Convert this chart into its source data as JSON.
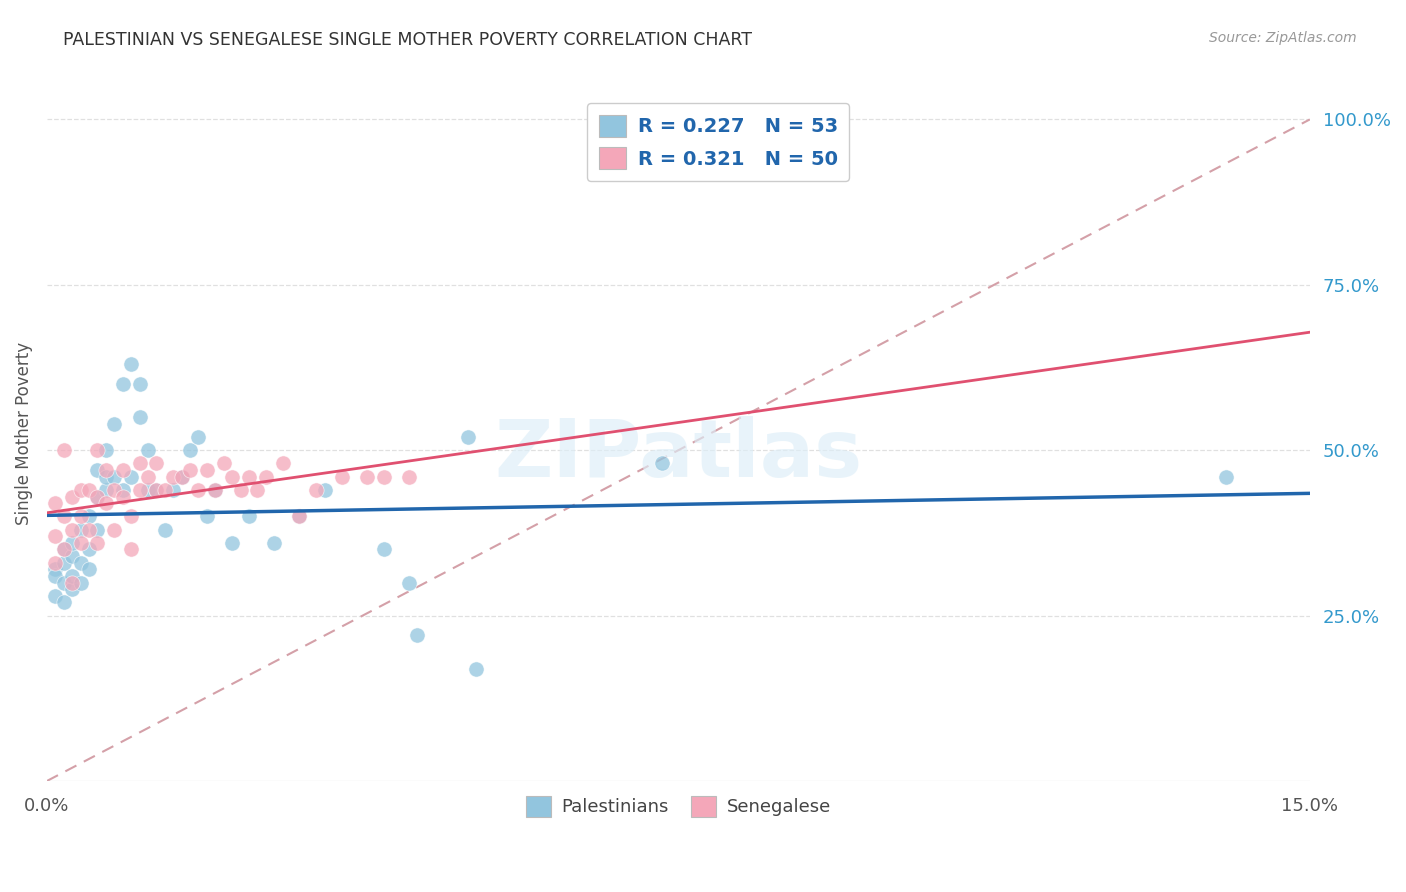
{
  "title": "PALESTINIAN VS SENEGALESE SINGLE MOTHER POVERTY CORRELATION CHART",
  "source": "Source: ZipAtlas.com",
  "ylabel_label": "Single Mother Poverty",
  "xlim": [
    0.0,
    0.15
  ],
  "ylim": [
    0.0,
    1.05
  ],
  "ytick_vals_right": [
    0.25,
    0.5,
    0.75,
    1.0
  ],
  "ytick_labels_right": [
    "25.0%",
    "50.0%",
    "75.0%",
    "100.0%"
  ],
  "palestinians_R": 0.227,
  "palestinians_N": 53,
  "senegalese_R": 0.321,
  "senegalese_N": 50,
  "blue_color": "#92c5de",
  "pink_color": "#f4a7b9",
  "blue_line_color": "#2166ac",
  "pink_line_color": "#e05070",
  "diagonal_color": "#d4a0a8",
  "legend_text_color": "#2166ac",
  "right_axis_color": "#3399cc",
  "background_color": "#ffffff",
  "grid_color": "#e0e0e0",
  "palestinians_x": [
    0.001,
    0.001,
    0.001,
    0.002,
    0.002,
    0.002,
    0.002,
    0.003,
    0.003,
    0.003,
    0.003,
    0.004,
    0.004,
    0.004,
    0.005,
    0.005,
    0.005,
    0.006,
    0.006,
    0.006,
    0.007,
    0.007,
    0.007,
    0.008,
    0.008,
    0.009,
    0.009,
    0.01,
    0.01,
    0.011,
    0.011,
    0.012,
    0.012,
    0.013,
    0.014,
    0.015,
    0.016,
    0.017,
    0.018,
    0.019,
    0.02,
    0.022,
    0.024,
    0.027,
    0.03,
    0.033,
    0.04,
    0.043,
    0.044,
    0.05,
    0.051,
    0.073,
    0.14
  ],
  "palestinians_y": [
    0.32,
    0.28,
    0.31,
    0.3,
    0.33,
    0.27,
    0.35,
    0.29,
    0.34,
    0.31,
    0.36,
    0.38,
    0.33,
    0.3,
    0.35,
    0.32,
    0.4,
    0.38,
    0.43,
    0.47,
    0.44,
    0.46,
    0.5,
    0.46,
    0.54,
    0.44,
    0.6,
    0.63,
    0.46,
    0.55,
    0.6,
    0.5,
    0.44,
    0.44,
    0.38,
    0.44,
    0.46,
    0.5,
    0.52,
    0.4,
    0.44,
    0.36,
    0.4,
    0.36,
    0.4,
    0.44,
    0.35,
    0.3,
    0.22,
    0.52,
    0.17,
    0.48,
    0.46
  ],
  "senegalese_x": [
    0.001,
    0.001,
    0.001,
    0.002,
    0.002,
    0.002,
    0.003,
    0.003,
    0.003,
    0.004,
    0.004,
    0.004,
    0.005,
    0.005,
    0.006,
    0.006,
    0.006,
    0.007,
    0.007,
    0.008,
    0.008,
    0.009,
    0.009,
    0.01,
    0.01,
    0.011,
    0.011,
    0.012,
    0.013,
    0.013,
    0.014,
    0.015,
    0.016,
    0.017,
    0.018,
    0.019,
    0.02,
    0.021,
    0.022,
    0.023,
    0.024,
    0.025,
    0.026,
    0.028,
    0.03,
    0.032,
    0.035,
    0.038,
    0.04,
    0.043
  ],
  "senegalese_y": [
    0.33,
    0.37,
    0.42,
    0.35,
    0.4,
    0.5,
    0.3,
    0.43,
    0.38,
    0.36,
    0.4,
    0.44,
    0.38,
    0.44,
    0.36,
    0.43,
    0.5,
    0.42,
    0.47,
    0.38,
    0.44,
    0.43,
    0.47,
    0.4,
    0.35,
    0.44,
    0.48,
    0.46,
    0.44,
    0.48,
    0.44,
    0.46,
    0.46,
    0.47,
    0.44,
    0.47,
    0.44,
    0.48,
    0.46,
    0.44,
    0.46,
    0.44,
    0.46,
    0.48,
    0.4,
    0.44,
    0.46,
    0.46,
    0.46,
    0.46
  ],
  "watermark": "ZIPatlas"
}
